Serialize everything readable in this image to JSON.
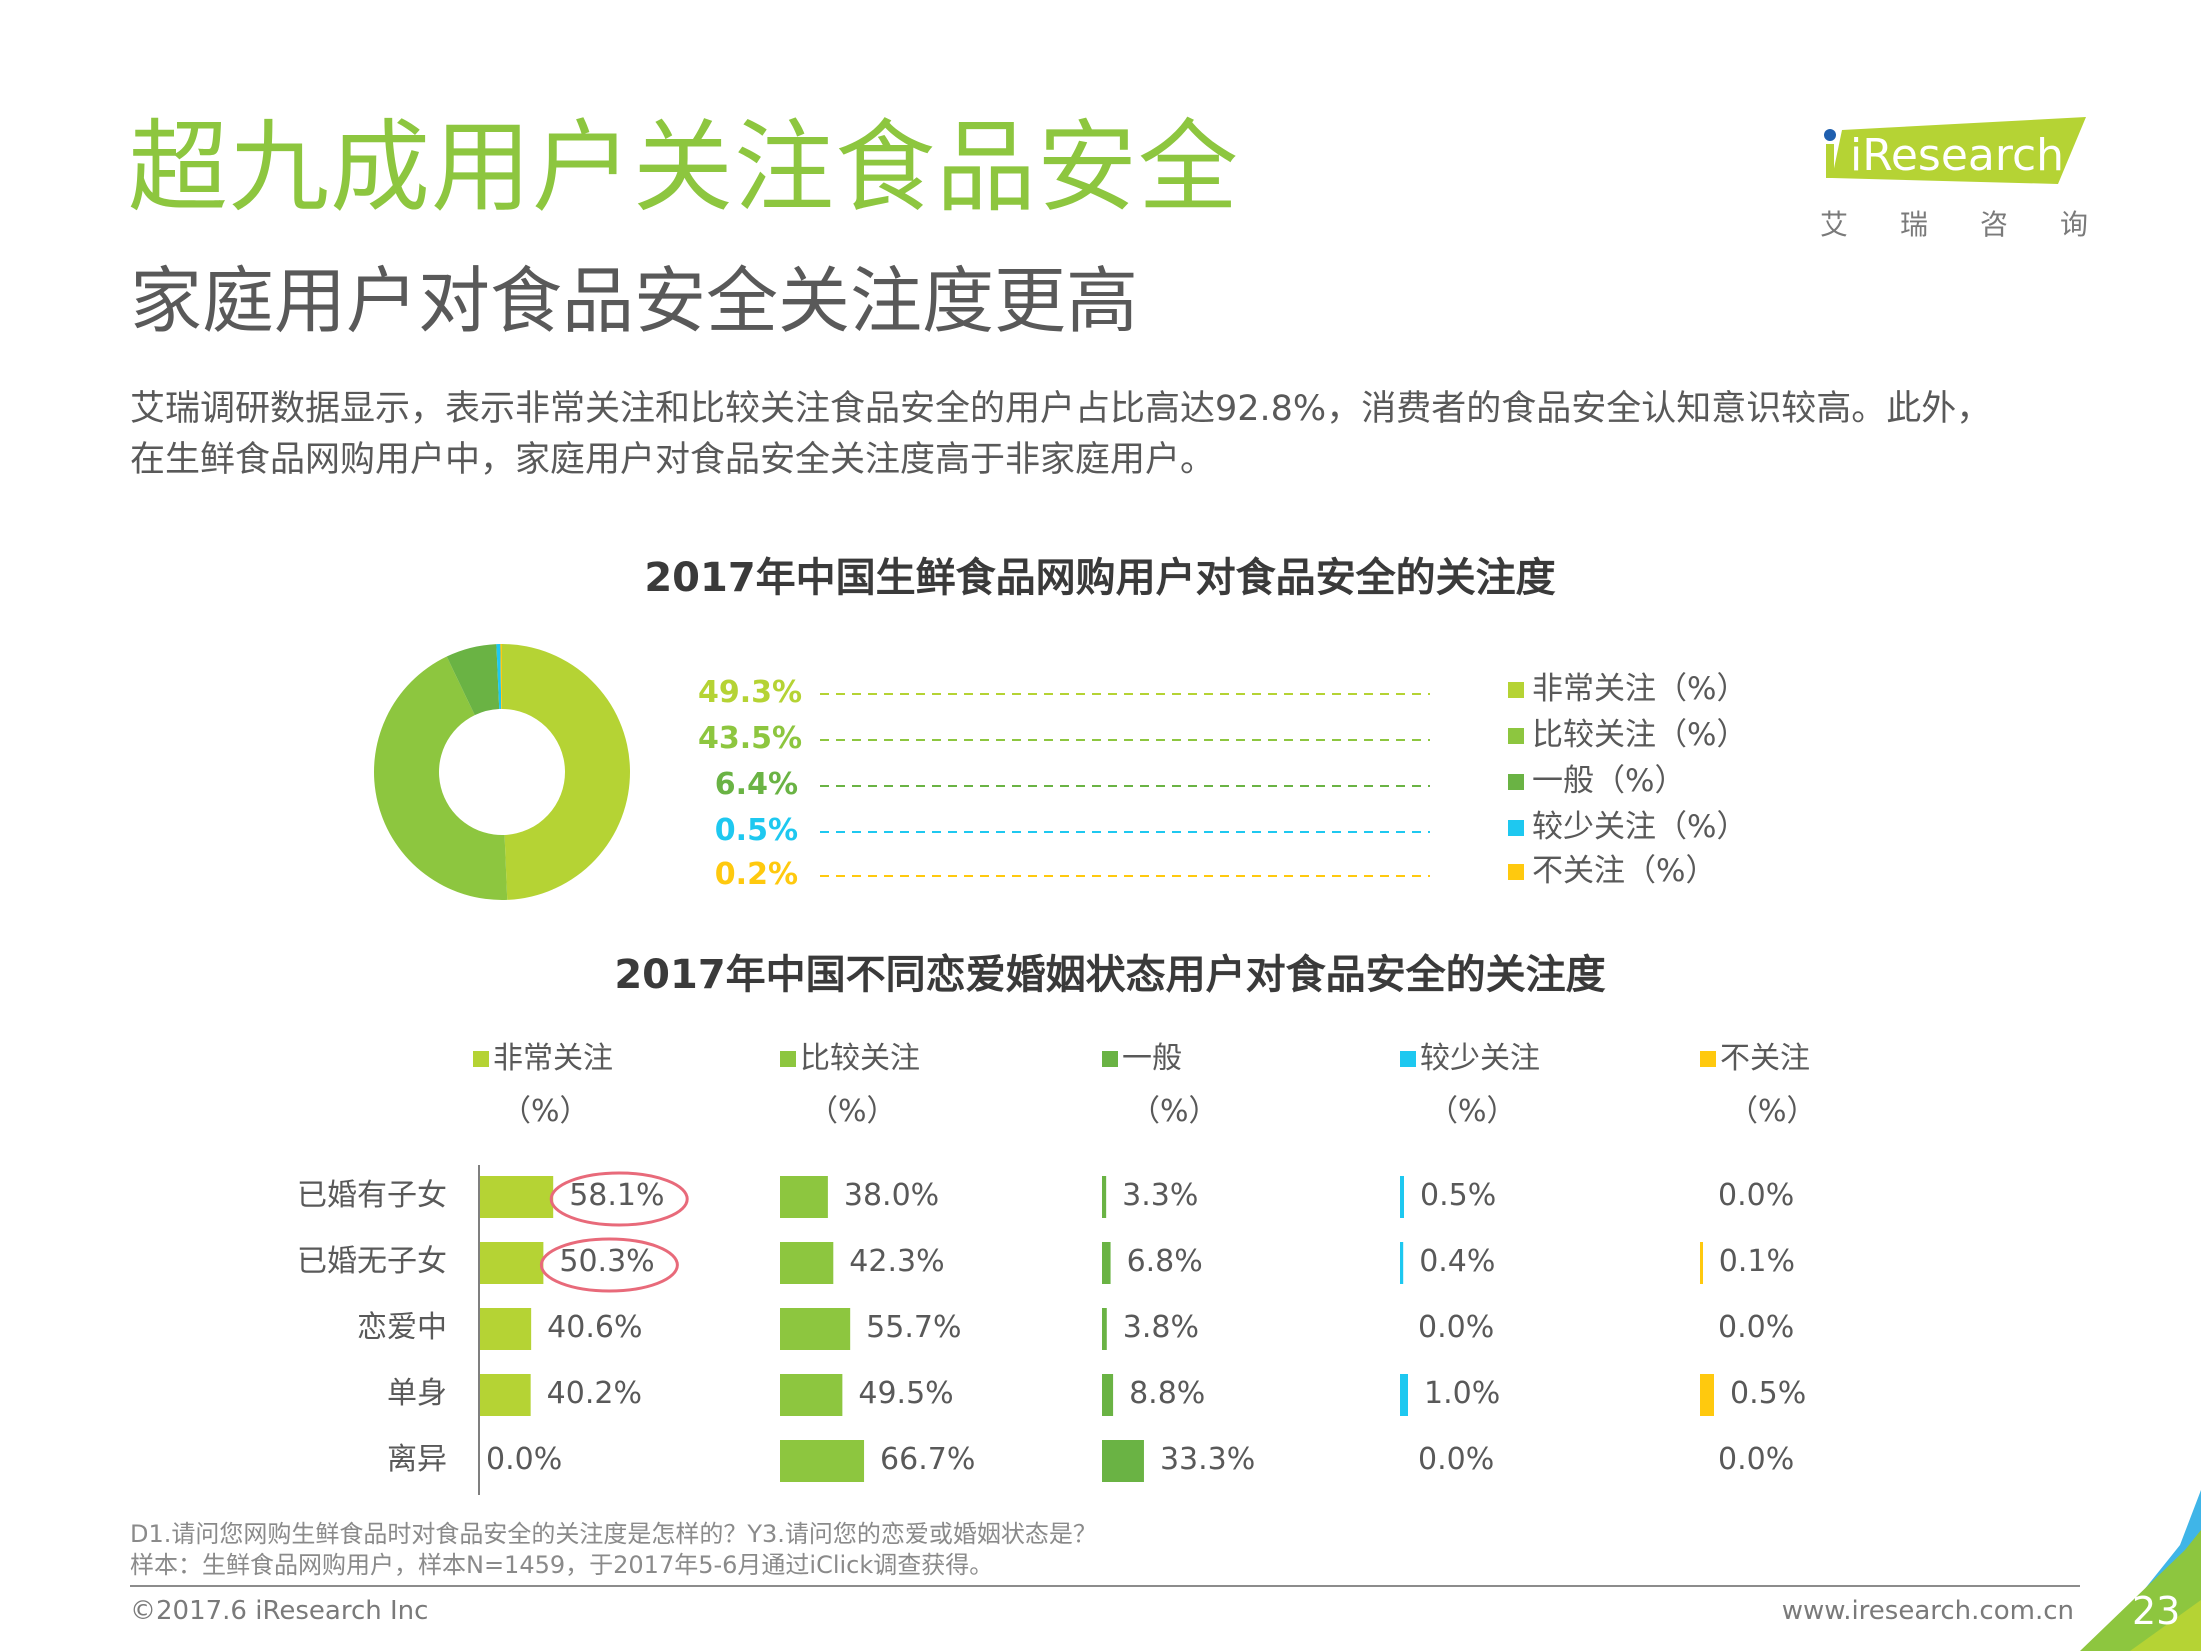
{
  "header": {
    "title": "超九成用户关注食品安全",
    "subtitle": "家庭用户对食品安全关注度更高",
    "body_lines": [
      "艾瑞调研数据显示，表示非常关注和比较关注食品安全的用户占比高达92.8%，消费者的食品安全认知意识较高。此外，",
      "在生鲜食品网购用户中，家庭用户对食品安全关注度高于非家庭用户。"
    ],
    "logo": {
      "brand": "iResearch",
      "brand_cn": [
        "艾",
        "瑞",
        "咨",
        "询"
      ]
    }
  },
  "colors": {
    "very_concerned": "#b5d334",
    "fairly_concerned": "#8dc63f",
    "neutral": "#6ab344",
    "less_concerned": "#1ec8f0",
    "not_concerned": "#ffc90e",
    "highlight_circle": "#e86a7a",
    "title_green": "#8dc63f"
  },
  "chart_data": [
    {
      "type": "pie",
      "variant": "donut",
      "title": "2017年中国生鲜食品网购用户对食品安全的关注度",
      "categories": [
        "非常关注（%）",
        "比较关注（%）",
        "一般（%）",
        "较少关注（%）",
        "不关注（%）"
      ],
      "values": [
        49.3,
        43.5,
        6.4,
        0.5,
        0.2
      ],
      "value_labels": [
        "49.3%",
        "43.5%",
        "6.4%",
        "0.5%",
        "0.2%"
      ],
      "colors": [
        "#b5d334",
        "#8dc63f",
        "#6ab344",
        "#1ec8f0",
        "#ffc90e"
      ],
      "legend_position": "right"
    },
    {
      "type": "bar",
      "orientation": "horizontal",
      "layout": "small-multiples",
      "title": "2017年中国不同恋爱婚姻状态用户对食品安全的关注度",
      "categories": [
        "已婚有子女",
        "已婚无子女",
        "恋爱中",
        "单身",
        "离异"
      ],
      "unit_label": "（%）",
      "series": [
        {
          "name": "非常关注",
          "color": "#b5d334",
          "values": [
            58.1,
            50.3,
            40.6,
            40.2,
            0.0
          ],
          "labels": [
            "58.1%",
            "50.3%",
            "40.6%",
            "40.2%",
            "0.0%"
          ],
          "highlighted": [
            true,
            true,
            false,
            false,
            false
          ]
        },
        {
          "name": "比较关注",
          "color": "#8dc63f",
          "values": [
            38.0,
            42.3,
            55.7,
            49.5,
            66.7
          ],
          "labels": [
            "38.0%",
            "42.3%",
            "55.7%",
            "49.5%",
            "66.7%"
          ]
        },
        {
          "name": "一般",
          "color": "#6ab344",
          "values": [
            3.3,
            6.8,
            3.8,
            8.8,
            33.3
          ],
          "labels": [
            "3.3%",
            "6.8%",
            "3.8%",
            "8.8%",
            "33.3%"
          ]
        },
        {
          "name": "较少关注",
          "color": "#1ec8f0",
          "values": [
            0.5,
            0.4,
            0.0,
            1.0,
            0.0
          ],
          "labels": [
            "0.5%",
            "0.4%",
            "0.0%",
            "1.0%",
            "0.0%"
          ]
        },
        {
          "name": "不关注",
          "color": "#ffc90e",
          "values": [
            0.0,
            0.1,
            0.0,
            0.5,
            0.0
          ],
          "labels": [
            "0.0%",
            "0.1%",
            "0.0%",
            "0.5%",
            "0.0%"
          ]
        }
      ]
    }
  ],
  "footer": {
    "notes": [
      "D1.请问您网购生鲜食品时对食品安全的关注度是怎样的？Y3.请问您的恋爱或婚姻状态是？",
      "样本：生鲜食品网购用户，样本N=1459，于2017年5-6月通过iClick调查获得。"
    ],
    "copyright": "©2017.6 iResearch Inc",
    "website": "www.iresearch.com.cn",
    "page_number": "23"
  }
}
